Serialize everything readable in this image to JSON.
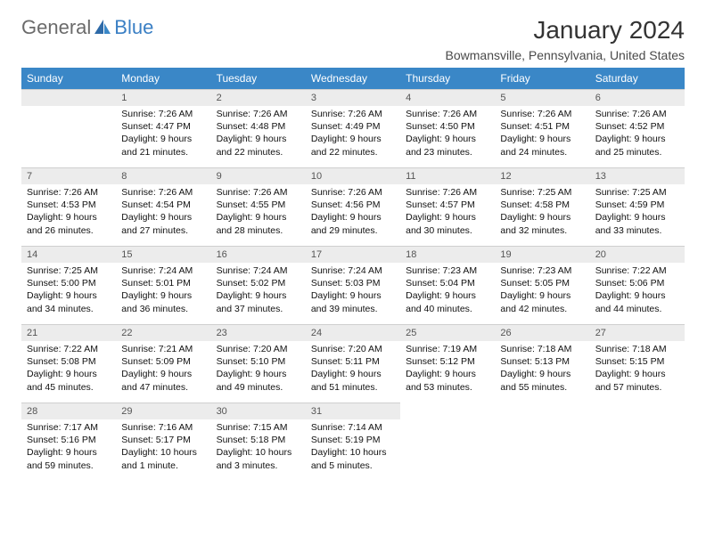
{
  "logo": {
    "general": "General",
    "blue": "Blue"
  },
  "title": "January 2024",
  "location": "Bowmansville, Pennsylvania, United States",
  "colors": {
    "header_bg": "#3a87c7",
    "header_fg": "#ffffff",
    "daynum_bg": "#ececec",
    "border": "#cfcfcf",
    "logo_gray": "#6b6b6b",
    "logo_blue": "#3a7fc4"
  },
  "weekdays": [
    "Sunday",
    "Monday",
    "Tuesday",
    "Wednesday",
    "Thursday",
    "Friday",
    "Saturday"
  ],
  "weeks": [
    [
      null,
      {
        "n": "1",
        "sr": "Sunrise: 7:26 AM",
        "ss": "Sunset: 4:47 PM",
        "d1": "Daylight: 9 hours",
        "d2": "and 21 minutes."
      },
      {
        "n": "2",
        "sr": "Sunrise: 7:26 AM",
        "ss": "Sunset: 4:48 PM",
        "d1": "Daylight: 9 hours",
        "d2": "and 22 minutes."
      },
      {
        "n": "3",
        "sr": "Sunrise: 7:26 AM",
        "ss": "Sunset: 4:49 PM",
        "d1": "Daylight: 9 hours",
        "d2": "and 22 minutes."
      },
      {
        "n": "4",
        "sr": "Sunrise: 7:26 AM",
        "ss": "Sunset: 4:50 PM",
        "d1": "Daylight: 9 hours",
        "d2": "and 23 minutes."
      },
      {
        "n": "5",
        "sr": "Sunrise: 7:26 AM",
        "ss": "Sunset: 4:51 PM",
        "d1": "Daylight: 9 hours",
        "d2": "and 24 minutes."
      },
      {
        "n": "6",
        "sr": "Sunrise: 7:26 AM",
        "ss": "Sunset: 4:52 PM",
        "d1": "Daylight: 9 hours",
        "d2": "and 25 minutes."
      }
    ],
    [
      {
        "n": "7",
        "sr": "Sunrise: 7:26 AM",
        "ss": "Sunset: 4:53 PM",
        "d1": "Daylight: 9 hours",
        "d2": "and 26 minutes."
      },
      {
        "n": "8",
        "sr": "Sunrise: 7:26 AM",
        "ss": "Sunset: 4:54 PM",
        "d1": "Daylight: 9 hours",
        "d2": "and 27 minutes."
      },
      {
        "n": "9",
        "sr": "Sunrise: 7:26 AM",
        "ss": "Sunset: 4:55 PM",
        "d1": "Daylight: 9 hours",
        "d2": "and 28 minutes."
      },
      {
        "n": "10",
        "sr": "Sunrise: 7:26 AM",
        "ss": "Sunset: 4:56 PM",
        "d1": "Daylight: 9 hours",
        "d2": "and 29 minutes."
      },
      {
        "n": "11",
        "sr": "Sunrise: 7:26 AM",
        "ss": "Sunset: 4:57 PM",
        "d1": "Daylight: 9 hours",
        "d2": "and 30 minutes."
      },
      {
        "n": "12",
        "sr": "Sunrise: 7:25 AM",
        "ss": "Sunset: 4:58 PM",
        "d1": "Daylight: 9 hours",
        "d2": "and 32 minutes."
      },
      {
        "n": "13",
        "sr": "Sunrise: 7:25 AM",
        "ss": "Sunset: 4:59 PM",
        "d1": "Daylight: 9 hours",
        "d2": "and 33 minutes."
      }
    ],
    [
      {
        "n": "14",
        "sr": "Sunrise: 7:25 AM",
        "ss": "Sunset: 5:00 PM",
        "d1": "Daylight: 9 hours",
        "d2": "and 34 minutes."
      },
      {
        "n": "15",
        "sr": "Sunrise: 7:24 AM",
        "ss": "Sunset: 5:01 PM",
        "d1": "Daylight: 9 hours",
        "d2": "and 36 minutes."
      },
      {
        "n": "16",
        "sr": "Sunrise: 7:24 AM",
        "ss": "Sunset: 5:02 PM",
        "d1": "Daylight: 9 hours",
        "d2": "and 37 minutes."
      },
      {
        "n": "17",
        "sr": "Sunrise: 7:24 AM",
        "ss": "Sunset: 5:03 PM",
        "d1": "Daylight: 9 hours",
        "d2": "and 39 minutes."
      },
      {
        "n": "18",
        "sr": "Sunrise: 7:23 AM",
        "ss": "Sunset: 5:04 PM",
        "d1": "Daylight: 9 hours",
        "d2": "and 40 minutes."
      },
      {
        "n": "19",
        "sr": "Sunrise: 7:23 AM",
        "ss": "Sunset: 5:05 PM",
        "d1": "Daylight: 9 hours",
        "d2": "and 42 minutes."
      },
      {
        "n": "20",
        "sr": "Sunrise: 7:22 AM",
        "ss": "Sunset: 5:06 PM",
        "d1": "Daylight: 9 hours",
        "d2": "and 44 minutes."
      }
    ],
    [
      {
        "n": "21",
        "sr": "Sunrise: 7:22 AM",
        "ss": "Sunset: 5:08 PM",
        "d1": "Daylight: 9 hours",
        "d2": "and 45 minutes."
      },
      {
        "n": "22",
        "sr": "Sunrise: 7:21 AM",
        "ss": "Sunset: 5:09 PM",
        "d1": "Daylight: 9 hours",
        "d2": "and 47 minutes."
      },
      {
        "n": "23",
        "sr": "Sunrise: 7:20 AM",
        "ss": "Sunset: 5:10 PM",
        "d1": "Daylight: 9 hours",
        "d2": "and 49 minutes."
      },
      {
        "n": "24",
        "sr": "Sunrise: 7:20 AM",
        "ss": "Sunset: 5:11 PM",
        "d1": "Daylight: 9 hours",
        "d2": "and 51 minutes."
      },
      {
        "n": "25",
        "sr": "Sunrise: 7:19 AM",
        "ss": "Sunset: 5:12 PM",
        "d1": "Daylight: 9 hours",
        "d2": "and 53 minutes."
      },
      {
        "n": "26",
        "sr": "Sunrise: 7:18 AM",
        "ss": "Sunset: 5:13 PM",
        "d1": "Daylight: 9 hours",
        "d2": "and 55 minutes."
      },
      {
        "n": "27",
        "sr": "Sunrise: 7:18 AM",
        "ss": "Sunset: 5:15 PM",
        "d1": "Daylight: 9 hours",
        "d2": "and 57 minutes."
      }
    ],
    [
      {
        "n": "28",
        "sr": "Sunrise: 7:17 AM",
        "ss": "Sunset: 5:16 PM",
        "d1": "Daylight: 9 hours",
        "d2": "and 59 minutes."
      },
      {
        "n": "29",
        "sr": "Sunrise: 7:16 AM",
        "ss": "Sunset: 5:17 PM",
        "d1": "Daylight: 10 hours",
        "d2": "and 1 minute."
      },
      {
        "n": "30",
        "sr": "Sunrise: 7:15 AM",
        "ss": "Sunset: 5:18 PM",
        "d1": "Daylight: 10 hours",
        "d2": "and 3 minutes."
      },
      {
        "n": "31",
        "sr": "Sunrise: 7:14 AM",
        "ss": "Sunset: 5:19 PM",
        "d1": "Daylight: 10 hours",
        "d2": "and 5 minutes."
      },
      null,
      null,
      null
    ]
  ]
}
